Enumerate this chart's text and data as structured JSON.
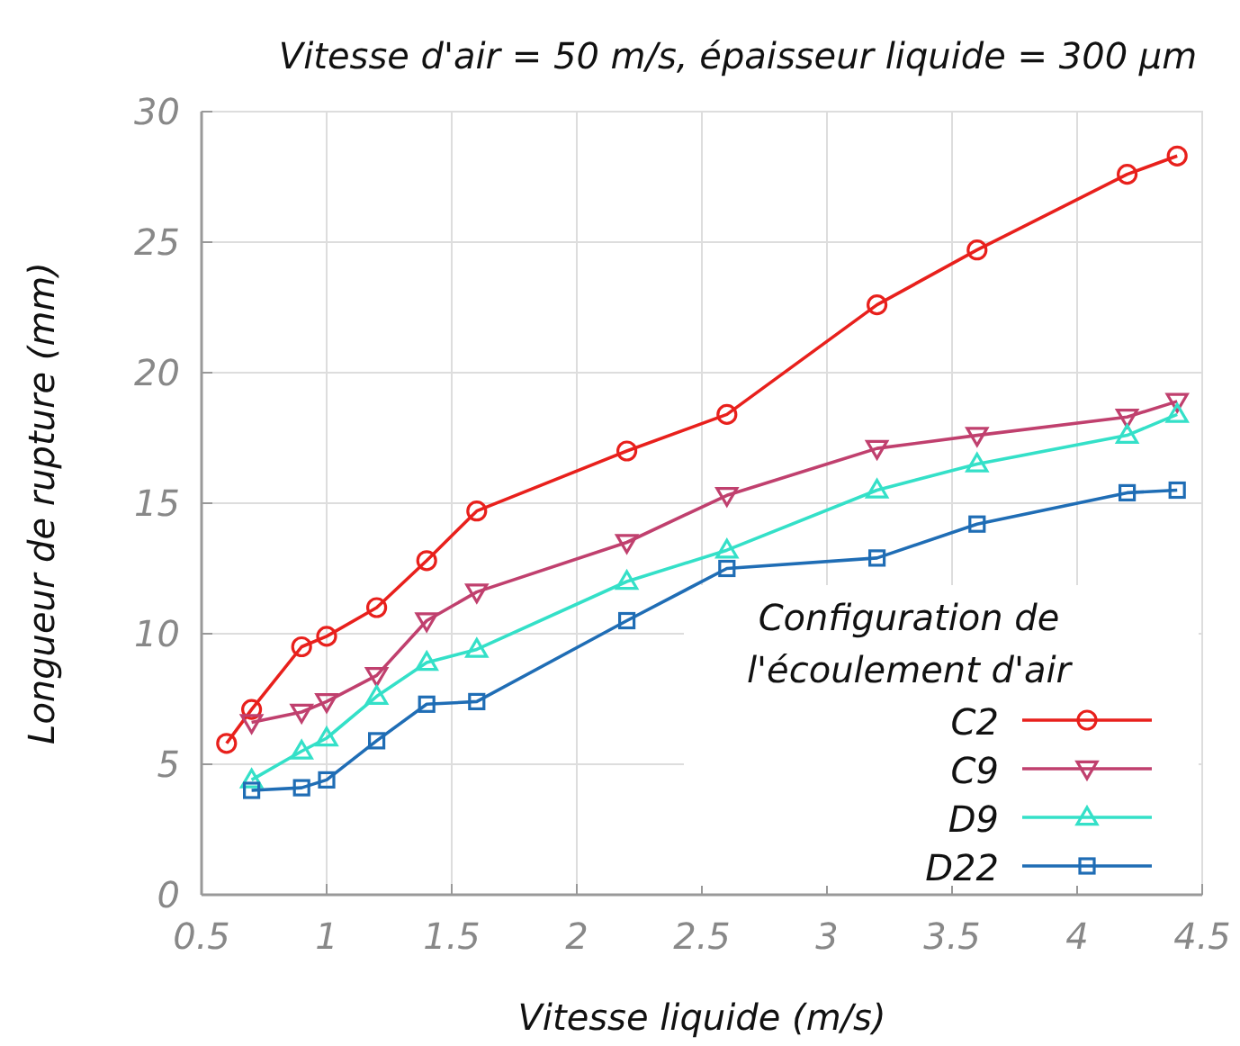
{
  "chart_data": {
    "type": "line",
    "title": "Vitesse d'air = 50 m/s, épaisseur liquide = 300 µm",
    "xlabel": "Vitesse liquide (m/s)",
    "ylabel": "Longueur de rupture (mm)",
    "legend_title": "Configuration de\nl'écoulement d'air",
    "xlim": [
      0.5,
      4.5
    ],
    "xticks": [
      0.5,
      1,
      1.5,
      2,
      2.5,
      3,
      3.5,
      4,
      4.5
    ],
    "ylim": [
      0,
      30
    ],
    "yticks": [
      0,
      5,
      10,
      15,
      20,
      25,
      30
    ],
    "grid": true,
    "legend": "bottom right",
    "line_style": "solid",
    "series": [
      {
        "name": "C2",
        "color": "#e8201c",
        "marker": "circle",
        "x": [
          0.6,
          0.7,
          0.9,
          1.0,
          1.2,
          1.4,
          1.6,
          2.2,
          2.6,
          3.2,
          3.6,
          4.2,
          4.4
        ],
        "values": [
          5.8,
          7.1,
          9.5,
          9.9,
          11.0,
          12.8,
          14.7,
          17.0,
          18.4,
          22.6,
          24.7,
          27.6,
          28.3
        ]
      },
      {
        "name": "C9",
        "color": "#c0406e",
        "marker": "triangle-down",
        "x": [
          0.7,
          0.9,
          1.0,
          1.2,
          1.4,
          1.6,
          2.2,
          2.6,
          3.2,
          3.6,
          4.2,
          4.4
        ],
        "values": [
          6.6,
          7.0,
          7.4,
          8.4,
          10.5,
          11.6,
          13.5,
          15.3,
          17.1,
          17.6,
          18.3,
          18.9
        ]
      },
      {
        "name": "D9",
        "color": "#34e0c8",
        "marker": "triangle",
        "x": [
          0.7,
          0.9,
          1.0,
          1.2,
          1.4,
          1.6,
          2.2,
          2.6,
          3.2,
          3.6,
          4.2,
          4.4
        ],
        "values": [
          4.4,
          5.5,
          6.0,
          7.6,
          8.9,
          9.4,
          12.0,
          13.2,
          15.5,
          16.5,
          17.6,
          18.4
        ]
      },
      {
        "name": "D22",
        "color": "#1f6db5",
        "marker": "square",
        "x": [
          0.7,
          0.9,
          1.0,
          1.2,
          1.4,
          1.6,
          2.2,
          2.6,
          3.2,
          3.6,
          4.2,
          4.4
        ],
        "values": [
          4.0,
          4.1,
          4.4,
          5.9,
          7.3,
          7.4,
          10.5,
          12.5,
          12.9,
          14.2,
          15.4,
          15.5
        ]
      }
    ]
  }
}
